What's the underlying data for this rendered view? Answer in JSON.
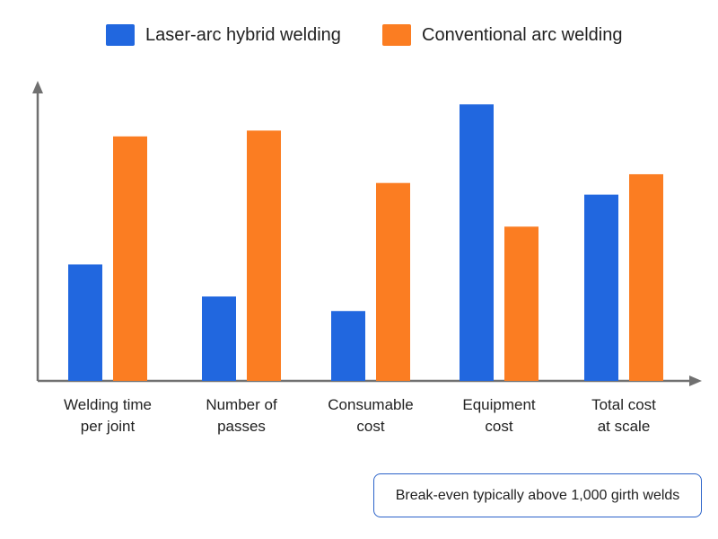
{
  "colors": {
    "hybrid": "#2167DF",
    "conventional": "#FB7D22",
    "axis": "#707070",
    "note_border": "#2b63c9"
  },
  "legend": {
    "hybrid_label": "Laser-arc hybrid welding",
    "conventional_label": "Conventional arc welding"
  },
  "note": {
    "text": "Break-even typically above 1,000 girth welds"
  },
  "chart_data": {
    "type": "bar",
    "title": "",
    "xlabel": "",
    "ylabel": "",
    "ylim": [
      0,
      100
    ],
    "grid": false,
    "legend_position": "top",
    "categories": [
      [
        "Welding time",
        "per joint"
      ],
      [
        "Number of",
        "passes"
      ],
      [
        "Consumable",
        "cost"
      ],
      [
        "Equipment",
        "cost"
      ],
      [
        "Total cost",
        "at scale"
      ]
    ],
    "series": [
      {
        "name": "Laser-arc hybrid welding",
        "values": [
          40,
          29,
          24,
          95,
          64
        ]
      },
      {
        "name": "Conventional arc welding",
        "values": [
          84,
          86,
          68,
          53,
          71
        ]
      }
    ]
  }
}
